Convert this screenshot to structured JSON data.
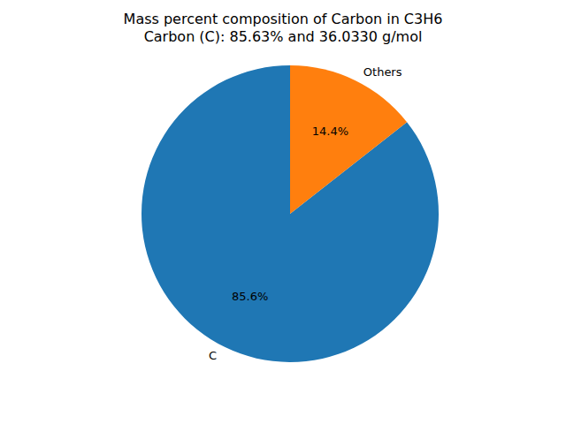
{
  "chart_data": {
    "type": "pie",
    "title": "Mass percent composition of Carbon in C3H6\nCarbon (C): 85.63% and 36.0330 g/mol",
    "categories": [
      "C",
      "Others"
    ],
    "values": [
      85.6,
      14.4
    ],
    "value_labels": [
      "85.6%",
      "14.4%"
    ],
    "colors": [
      "#1f77b4",
      "#ff7f0e"
    ],
    "data_labels": true
  }
}
